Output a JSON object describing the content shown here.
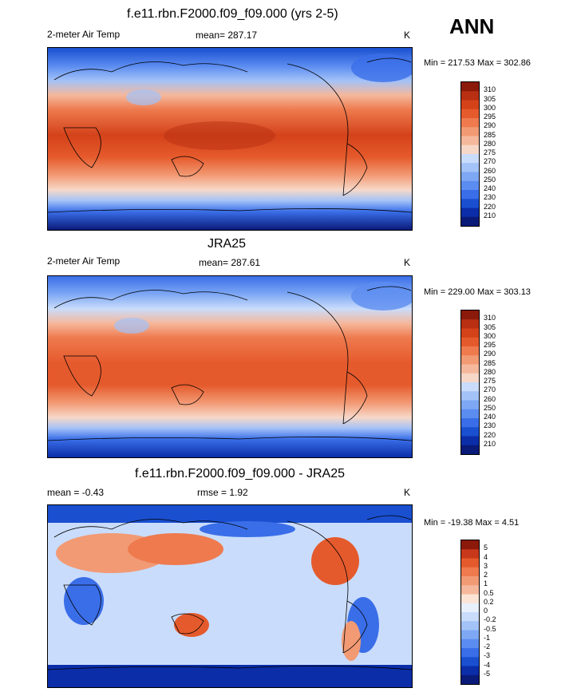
{
  "header": {
    "season": "ANN"
  },
  "colors": {
    "temp_scale": [
      "#0a1a78",
      "#0b2da8",
      "#1a4fd0",
      "#3a6ee8",
      "#5b8cf0",
      "#7ea8f4",
      "#a3c2f8",
      "#c9dcfb",
      "#f7d8c8",
      "#f5b89c",
      "#f29a74",
      "#ee7a4e",
      "#e55a2c",
      "#d4421a",
      "#b82f12",
      "#8b1a0a"
    ],
    "diff_scale": [
      "#0a1a78",
      "#0b2da8",
      "#1a4fd0",
      "#3a6ee8",
      "#5b8cf0",
      "#7ea8f4",
      "#a3c2f8",
      "#c9dcfb",
      "#e8f0fc",
      "#fbe4d6",
      "#f5b89c",
      "#f29a74",
      "#ee7a4e",
      "#e55a2c",
      "#c8381a",
      "#8b1a0a"
    ]
  },
  "panels": [
    {
      "title": "f.e11.rbn.F2000.f09_f09.000 (yrs 2-5)",
      "left_label": "2-meter Air Temp",
      "stat_label": "mean= 287.17",
      "units": "K",
      "minmax": "Min = 217.53 Max = 302.86",
      "ticks": [
        "310",
        "305",
        "300",
        "295",
        "290",
        "285",
        "280",
        "275",
        "270",
        "260",
        "250",
        "240",
        "230",
        "220",
        "210"
      ]
    },
    {
      "title": "JRA25",
      "left_label": "2-meter Air Temp",
      "stat_label": "mean= 287.61",
      "units": "K",
      "minmax": "Min = 229.00 Max = 303.13",
      "ticks": [
        "310",
        "305",
        "300",
        "295",
        "290",
        "285",
        "280",
        "275",
        "270",
        "260",
        "250",
        "240",
        "230",
        "220",
        "210"
      ]
    },
    {
      "title": "f.e11.rbn.F2000.f09_f09.000 - JRA25",
      "left_label": "mean =  -0.43",
      "stat_label": "rmse =   1.92",
      "units": "K",
      "minmax": "Min = -19.38 Max =   4.51",
      "ticks": [
        "5",
        "4",
        "3",
        "2",
        "1",
        "0.5",
        "0.2",
        "0",
        "-0.2",
        "-0.5",
        "-1",
        "-2",
        "-3",
        "-4",
        "-5"
      ]
    }
  ]
}
